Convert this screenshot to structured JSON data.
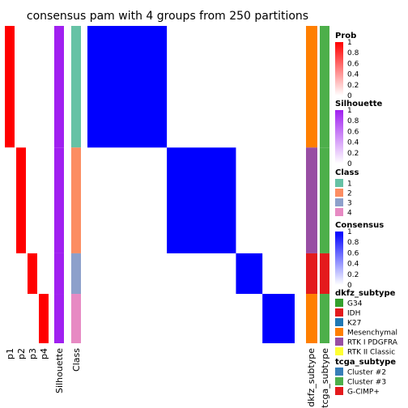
{
  "chart_data": {
    "type": "heatmap",
    "title": "consensus pam with 4 groups from 250 partitions",
    "column_labels": [
      "p1",
      "p2",
      "p3",
      "p4",
      "Silhouette",
      "Class"
    ],
    "bottom_labels": [
      "dkfz_subtype",
      "tcga_subtype"
    ],
    "groups": [
      {
        "class": "1",
        "count": 69,
        "color": "#66C2A5"
      },
      {
        "class": "2",
        "count": 60,
        "color": "#FC8D62"
      },
      {
        "class": "3",
        "count": 23,
        "color": "#8DA0CB"
      },
      {
        "class": "4",
        "count": 28,
        "color": "#E78AC3"
      }
    ],
    "legends": {
      "prob": {
        "title": "Prob",
        "ticks": [
          "1",
          "0.8",
          "0.6",
          "0.4",
          "0.2",
          "0"
        ],
        "color_high": "#FF0000",
        "color_low": "#FFFFFF"
      },
      "silhouette": {
        "title": "Silhouette",
        "ticks": [
          "1",
          "0.8",
          "0.6",
          "0.4",
          "0.2",
          "0"
        ],
        "color_high": "#A020F0",
        "color_low": "#FFFFFF"
      },
      "class": {
        "title": "Class",
        "items": [
          {
            "label": "1",
            "color": "#66C2A5"
          },
          {
            "label": "2",
            "color": "#FC8D62"
          },
          {
            "label": "3",
            "color": "#8DA0CB"
          },
          {
            "label": "4",
            "color": "#E78AC3"
          }
        ]
      },
      "consensus": {
        "title": "Consensus",
        "ticks": [
          "1",
          "0.8",
          "0.6",
          "0.4",
          "0.2",
          "0"
        ],
        "color_high": "#0000FF",
        "color_low": "#FFFFFF"
      },
      "dkfz_subtype": {
        "title": "dkfz_subtype",
        "items": [
          {
            "label": "G34",
            "color": "#33A02C"
          },
          {
            "label": "IDH",
            "color": "#E31A1C"
          },
          {
            "label": "K27",
            "color": "#1F78B4"
          },
          {
            "label": "Mesenchymal",
            "color": "#FF7F00"
          },
          {
            "label": "RTK I PDGFRA",
            "color": "#984EA3"
          },
          {
            "label": "RTK II Classic",
            "color": "#FFFF33"
          }
        ]
      },
      "tcga_subtype": {
        "title": "tcga_subtype",
        "items": [
          {
            "label": "Cluster #2",
            "color": "#377EB8"
          },
          {
            "label": "Cluster #3",
            "color": "#4DAF4A"
          },
          {
            "label": "G-CIMP+",
            "color": "#E41A1C"
          }
        ]
      }
    }
  }
}
